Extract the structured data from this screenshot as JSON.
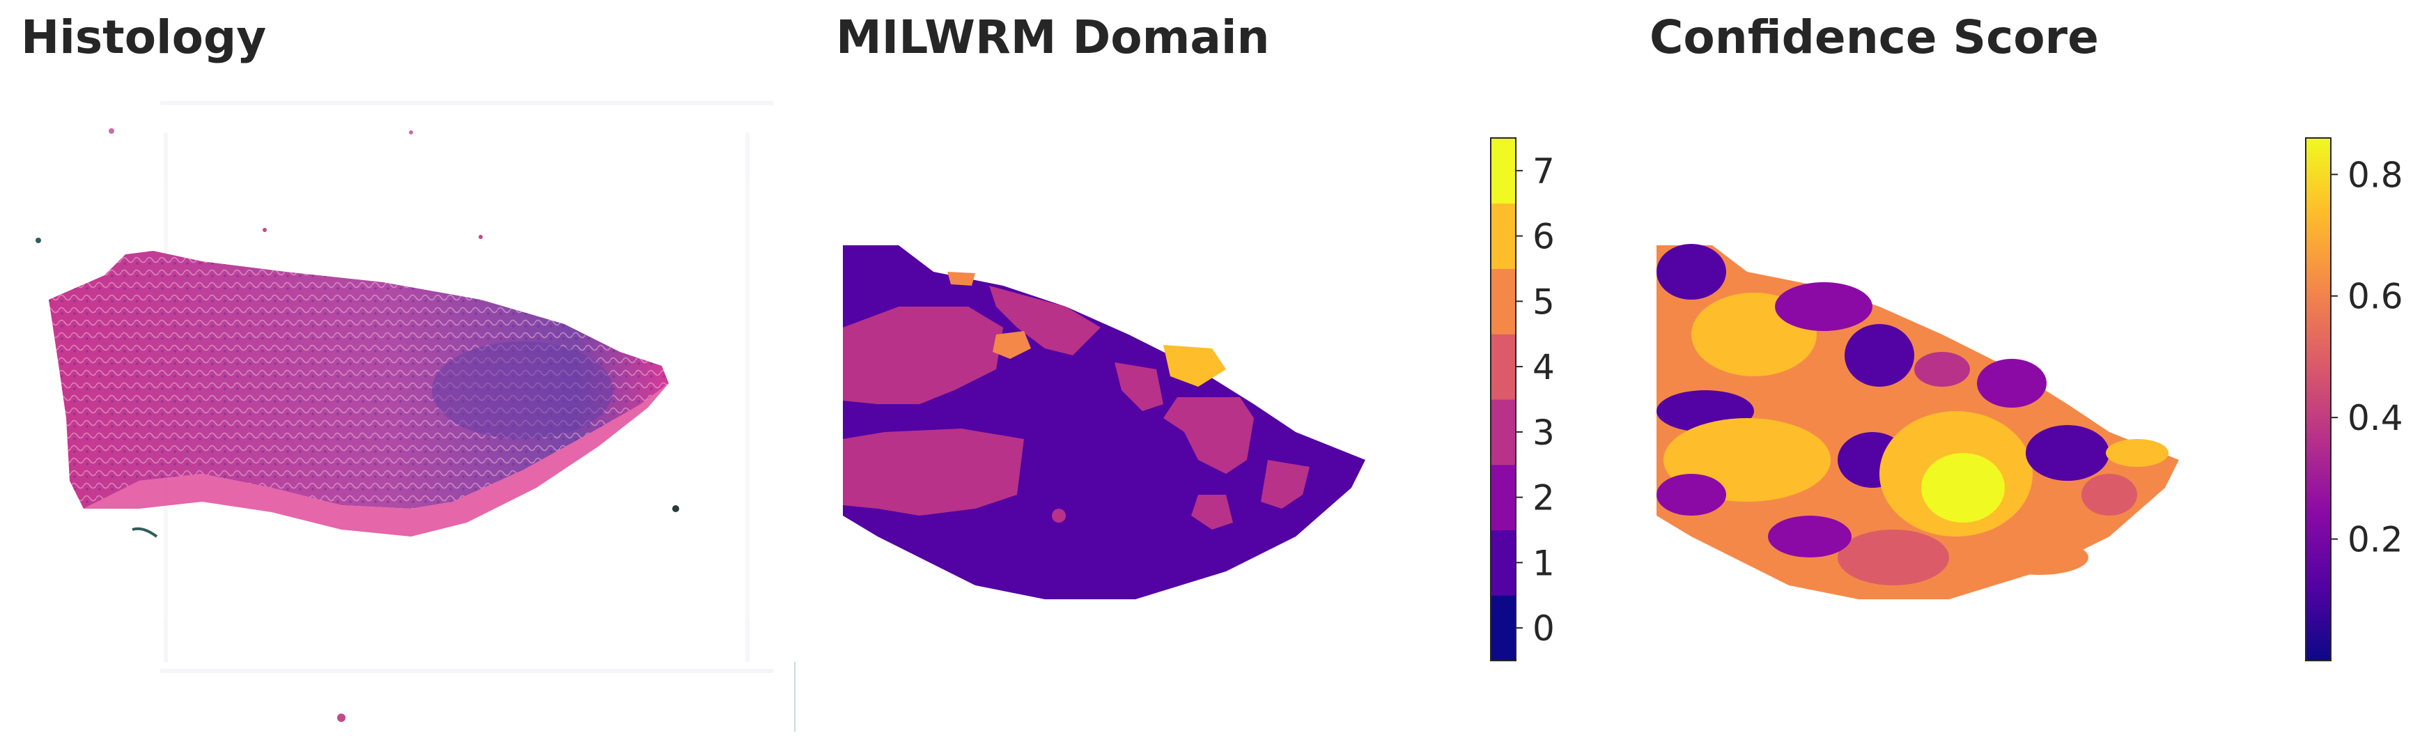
{
  "figure": {
    "panels": [
      {
        "title": "Histology"
      },
      {
        "title": "MILWRM Domain"
      },
      {
        "title": "Confidence Score"
      }
    ]
  },
  "colorbars": {
    "domain": {
      "colormap": "plasma (discrete, 8 levels)",
      "colors": [
        "#0d0887",
        "#5302a3",
        "#8b0aa5",
        "#b83289",
        "#db5c68",
        "#f48849",
        "#febd2a",
        "#f0f921"
      ],
      "ticks": [
        "0",
        "1",
        "2",
        "3",
        "4",
        "5",
        "6",
        "7"
      ],
      "range": [
        -0.5,
        7.5
      ]
    },
    "confidence": {
      "colormap": "plasma",
      "stops": [
        "#0d0887",
        "#5302a3",
        "#8b0aa5",
        "#b83289",
        "#db5c68",
        "#f48849",
        "#febd2a",
        "#f0f921"
      ],
      "ticks": [
        "0.2",
        "0.4",
        "0.6",
        "0.8"
      ],
      "tick_values": [
        0.2,
        0.4,
        0.6,
        0.8
      ],
      "range": [
        0.0,
        0.86
      ]
    }
  },
  "colors": {
    "tissue_pink": "#d63a96",
    "tissue_purple": "#7a46a8",
    "domain_main": "#5302a3",
    "domain_region": "#b83289"
  }
}
